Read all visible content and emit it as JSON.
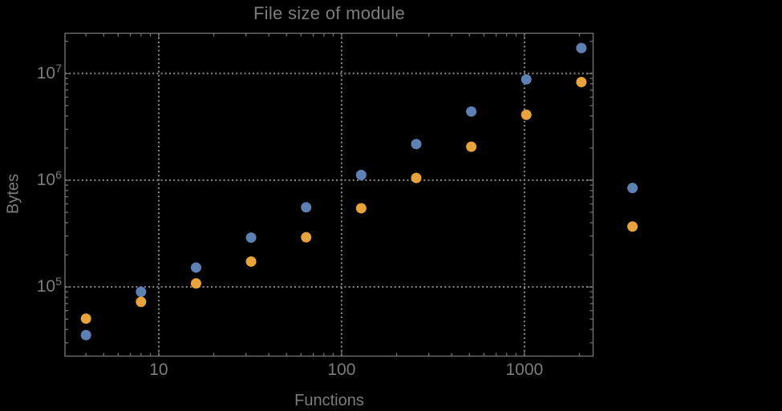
{
  "colors": {
    "background": "#000000",
    "text": "#7d7d7d",
    "frame": "#707070",
    "grid": "#8c8c8c",
    "series_blue": "#5e81b5",
    "series_orange": "#e8a33c"
  },
  "chart_data": {
    "type": "scatter",
    "title": "File size of module",
    "xlabel": "Functions",
    "ylabel": "Bytes",
    "xscale": "log",
    "yscale": "log",
    "xlim": [
      3.07,
      2375
    ],
    "ylim": [
      22500,
      23800000
    ],
    "grid": "dotted gridlines at decade ticks, both axes",
    "legend_position": "none",
    "x_ticks": [
      {
        "value": 10,
        "label": "10"
      },
      {
        "value": 100,
        "label": "100"
      },
      {
        "value": 1000,
        "label": "1000"
      }
    ],
    "y_ticks": [
      {
        "value": 100000,
        "label": "10^5"
      },
      {
        "value": 1000000,
        "label": "10^6"
      },
      {
        "value": 10000000,
        "label": "10^7"
      }
    ],
    "x": [
      4,
      8,
      16,
      32,
      64,
      128,
      256,
      512,
      1024,
      2048,
      3900
    ],
    "series": [
      {
        "name": "series-blue",
        "color": "#5e81b5",
        "values": [
          35400,
          90000,
          152000,
          290000,
          557000,
          1120000,
          2180000,
          4400000,
          8800000,
          17300000,
          845000
        ]
      },
      {
        "name": "series-orange",
        "color": "#e8a33c",
        "values": [
          50500,
          72500,
          108000,
          173000,
          292000,
          546000,
          1050000,
          2060000,
          4100000,
          8300000,
          368000
        ]
      }
    ]
  }
}
